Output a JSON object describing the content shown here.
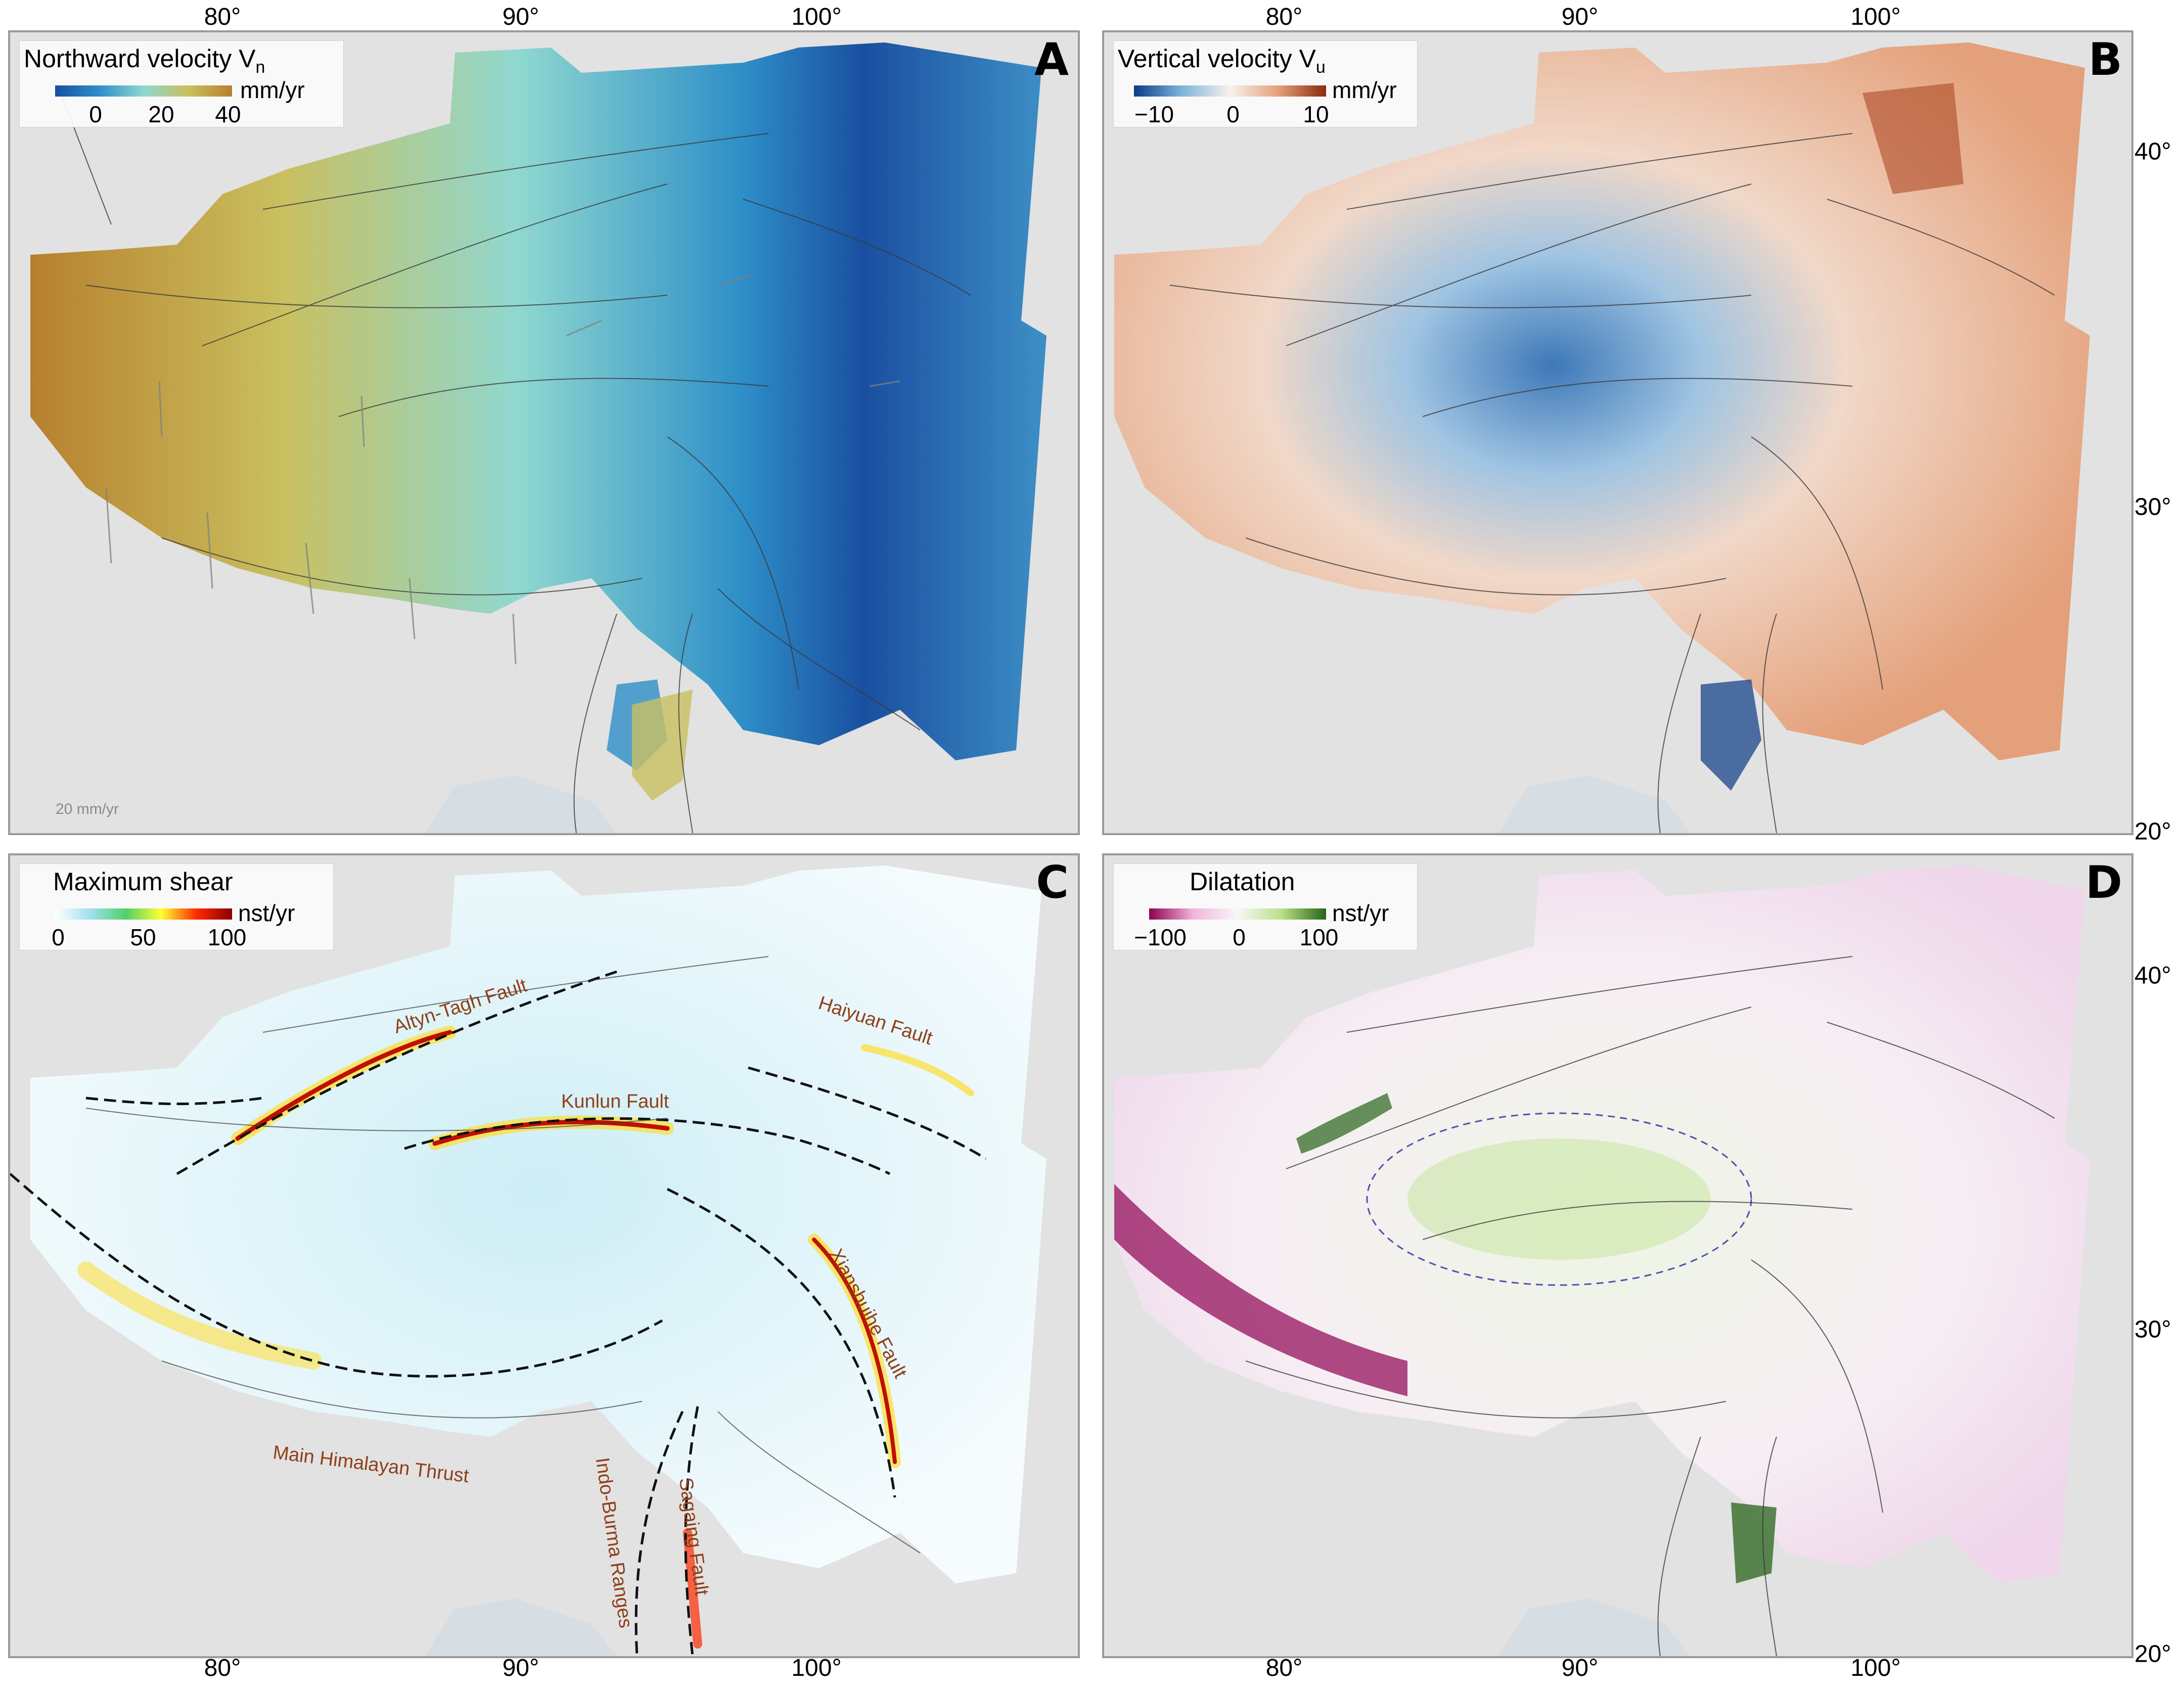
{
  "axes": {
    "lon_ticks": [
      "80°",
      "90°",
      "100°"
    ],
    "lat_ticks": [
      "40°",
      "30°",
      "20°"
    ]
  },
  "panels": {
    "A": {
      "letter": "A",
      "legend": {
        "title": "Northward velocity V",
        "title_sub": "n",
        "ticks": [
          "0",
          "20",
          "40"
        ],
        "unit": "mm/yr"
      },
      "colors": [
        "#1a4fa0",
        "#2e8fc8",
        "#8fd8d0",
        "#c9c060",
        "#b8802e"
      ],
      "scale_label": "20 mm/yr"
    },
    "B": {
      "letter": "B",
      "legend": {
        "title": "Vertical velocity V",
        "title_sub": "u",
        "ticks": [
          "−10",
          "0",
          "10"
        ],
        "unit": "mm/yr"
      },
      "colors": [
        "#0b3b84",
        "#7fb4dc",
        "#f6f1ee",
        "#e4a07a",
        "#8a2a10"
      ]
    },
    "C": {
      "letter": "C",
      "legend": {
        "title": "Maximum shear",
        "ticks": [
          "0",
          "50",
          "100"
        ],
        "unit": "nst/yr"
      },
      "colors": [
        "#ffffff",
        "#9fe0ee",
        "#4fd06a",
        "#ffff30",
        "#ff2a00",
        "#8a0000"
      ],
      "fault_labels": {
        "altyn": "Altyn-Tagh Fault",
        "haiyuan": "Haiyuan Fault",
        "kunlun": "Kunlun Fault",
        "xianshuihe": "Xianshuihe Fault",
        "mht": "Main Himalayan Thrust",
        "indoburma": "Indo-Burma Ranges",
        "sagaing": "Sagaing Fault"
      }
    },
    "D": {
      "letter": "D",
      "legend": {
        "title": "Dilatation",
        "ticks": [
          "−100",
          "0",
          "100"
        ],
        "unit": "nst/yr"
      },
      "colors": [
        "#8e0152",
        "#f1b6da",
        "#f7f7f7",
        "#b8e186",
        "#276419"
      ]
    }
  }
}
